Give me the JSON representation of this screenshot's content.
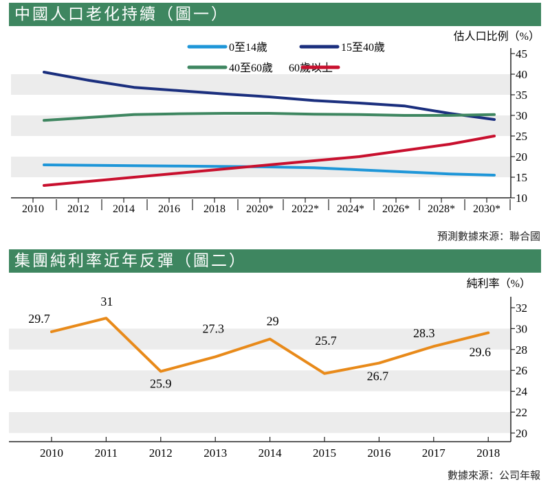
{
  "colors": {
    "banner": "#3e8660",
    "band": "#ececec",
    "age_0_14": "#1e96d8",
    "age_15_40": "#1b2f7e",
    "age_40_60": "#3e8660",
    "age_60_plus": "#c8102e",
    "margin": "#e88a1a"
  },
  "chart1_title": "中國人口老化持續（圖一）",
  "chart1_source": "預測數據來源：聯合國",
  "chart2_title": "集團純利率近年反彈（圖二）",
  "chart2_source": "數據來源：公司年報",
  "chart_data": [
    {
      "type": "line",
      "title": "中國人口老化持續（圖一）",
      "ylabel": "估人口比例（%）",
      "ylim": [
        10,
        45
      ],
      "yticks": [
        "45",
        "40",
        "35",
        "30",
        "25",
        "20",
        "15",
        "10"
      ],
      "categories": [
        "2010",
        "2012",
        "2014",
        "2016",
        "2018",
        "2020*",
        "2022*",
        "2024*",
        "2026*",
        "2028*",
        "2030*"
      ],
      "legend": "top",
      "series": [
        {
          "name": "0至14歲",
          "color": "#1e96d8",
          "values": [
            18,
            17.9,
            17.8,
            17.7,
            17.6,
            17.5,
            17.3,
            16.8,
            16.3,
            15.8,
            15.5
          ]
        },
        {
          "name": "15至40歲",
          "color": "#1b2f7e",
          "values": [
            40.5,
            38.5,
            36.8,
            36,
            35.2,
            34.5,
            33.6,
            33,
            32.3,
            30.5,
            29
          ]
        },
        {
          "name": "40至60歲",
          "color": "#3e8660",
          "values": [
            28.8,
            29.5,
            30.2,
            30.4,
            30.5,
            30.5,
            30.3,
            30.2,
            30,
            30,
            30.2
          ]
        },
        {
          "name": "60歲以上",
          "color": "#c8102e",
          "values": [
            13,
            14,
            15,
            16,
            17,
            18,
            19,
            20,
            21.5,
            23,
            25
          ]
        }
      ]
    },
    {
      "type": "line",
      "title": "集團純利率近年反彈（圖二）",
      "ylabel": "純利率（%）",
      "ylim": [
        19,
        33
      ],
      "yticks": [
        "32",
        "30",
        "28",
        "26",
        "24",
        "22",
        "20"
      ],
      "categories": [
        "2010",
        "2011",
        "2012",
        "2013",
        "2014",
        "2015",
        "2016",
        "2017",
        "2018"
      ],
      "series": [
        {
          "name": "純利率",
          "color": "#e88a1a",
          "values": [
            29.7,
            31,
            25.9,
            27.3,
            29,
            25.7,
            26.7,
            28.3,
            29.6
          ],
          "labels": [
            "29.7",
            "31",
            "25.9",
            "27.3",
            "29",
            "25.7",
            "26.7",
            "28.3",
            "29.6"
          ]
        }
      ]
    }
  ]
}
